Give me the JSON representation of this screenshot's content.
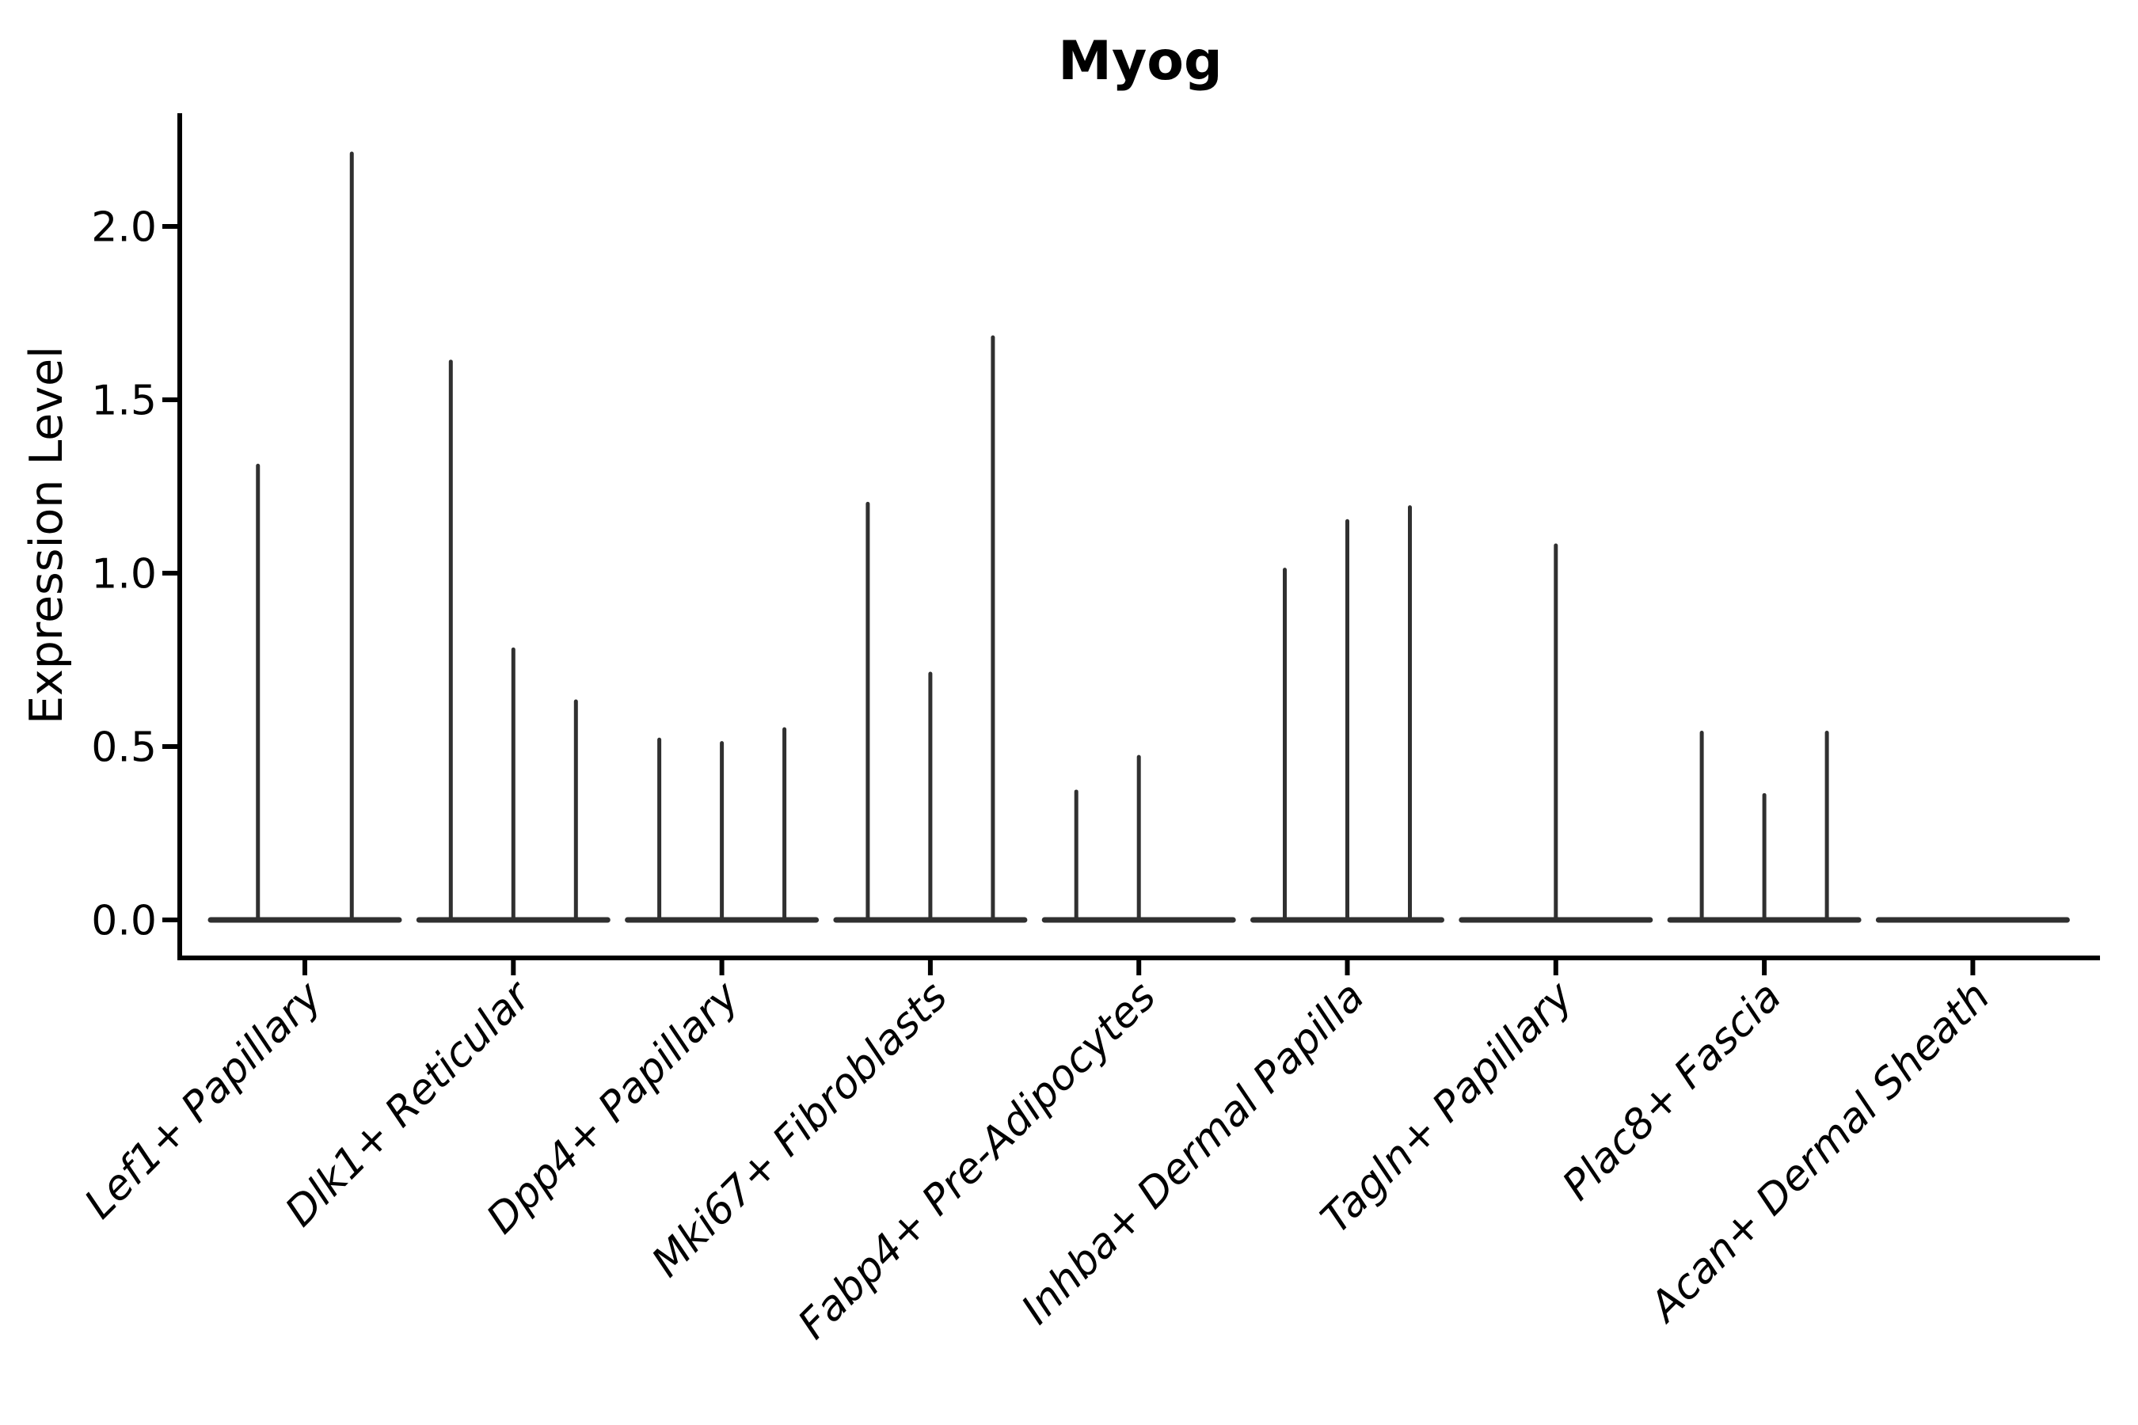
{
  "title": "Myog",
  "y_axis": {
    "label": "Expression Level",
    "tick_labels": [
      "0.0",
      "0.5",
      "1.0",
      "1.5",
      "2.0"
    ],
    "tick_values": [
      0.0,
      0.5,
      1.0,
      1.5,
      2.0
    ]
  },
  "colors": {
    "violin_line": "#303030",
    "axis": "#000000",
    "text": "#000000",
    "background": "#ffffff"
  },
  "chart_data": {
    "type": "violin",
    "title": "Myog",
    "xlabel": "",
    "ylabel": "Expression Level",
    "ylim": [
      -0.11,
      2.33
    ],
    "yticks": [
      0.0,
      0.5,
      1.0,
      1.5,
      2.0
    ],
    "grid": false,
    "legend": false,
    "note_style": "collapsed violins: flat base at 0 with vertical line to max expression",
    "categories": [
      "Lef1+ Papillary",
      "Dlk1+ Reticular",
      "Dpp4+ Papillary",
      "Mki67+ Fibroblasts",
      "Fabp4+ Pre-Adipocytes",
      "Inhba+ Dermal Papilla",
      "Tagln+ Papillary",
      "Plac8+ Fascia",
      "Acan+ Dermal Sheath"
    ],
    "series": [
      {
        "name": "Lef1+ Papillary",
        "violin_maxima": [
          1.31,
          2.21
        ]
      },
      {
        "name": "Dlk1+ Reticular",
        "violin_maxima": [
          1.61,
          0.78,
          0.63
        ]
      },
      {
        "name": "Dpp4+ Papillary",
        "violin_maxima": [
          0.52,
          0.51,
          0.55
        ]
      },
      {
        "name": "Mki67+ Fibroblasts",
        "violin_maxima": [
          1.2,
          0.71,
          1.68
        ]
      },
      {
        "name": "Fabp4+ Pre-Adipocytes",
        "violin_maxima": [
          0.37,
          0.47,
          0.0
        ]
      },
      {
        "name": "Inhba+ Dermal Papilla",
        "violin_maxima": [
          1.01,
          1.15,
          1.19
        ]
      },
      {
        "name": "Tagln+ Papillary",
        "violin_maxima": [
          1.08
        ]
      },
      {
        "name": "Plac8+ Fascia",
        "violin_maxima": [
          0.54,
          0.36,
          0.54
        ]
      },
      {
        "name": "Acan+ Dermal Sheath",
        "violin_maxima": [
          0.0
        ]
      }
    ]
  }
}
